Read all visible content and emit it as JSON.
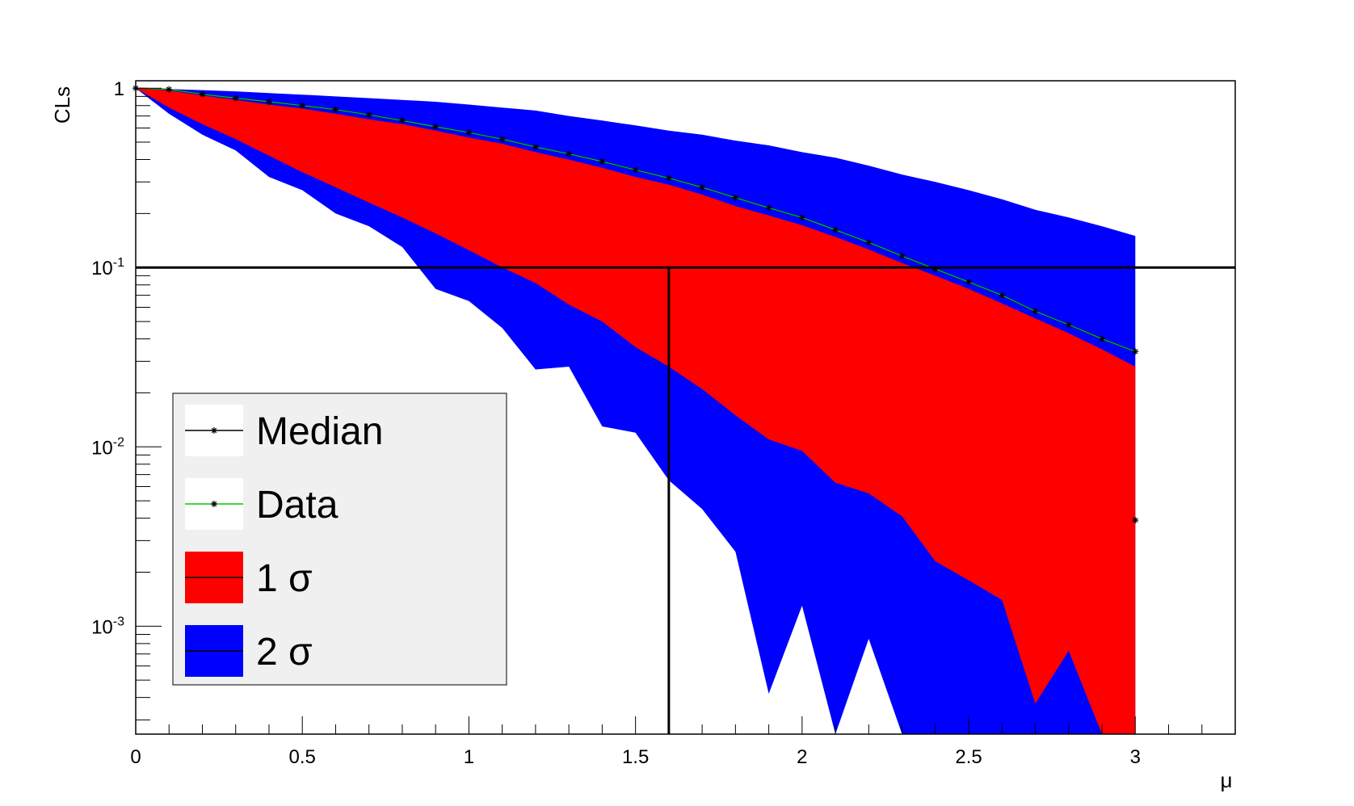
{
  "chart_data": {
    "type": "line",
    "xlabel": "μ",
    "ylabel": "CLs",
    "xlim": [
      0,
      3.3
    ],
    "ylim": [
      0.00025,
      1.1
    ],
    "yscale": "log",
    "grid": false,
    "legend_position": "bottom-left",
    "x_ticks": [
      "0",
      "0.5",
      "1",
      "1.5",
      "2",
      "2.5",
      "3"
    ],
    "y_ticks": [
      {
        "base": "1",
        "exp": ""
      },
      {
        "base": "10",
        "exp": "-1"
      },
      {
        "base": "10",
        "exp": "-2"
      },
      {
        "base": "10",
        "exp": "-3"
      }
    ],
    "threshold_y": 0.1,
    "limit_x": 1.6,
    "x": [
      0,
      0.1,
      0.2,
      0.3,
      0.4,
      0.5,
      0.6,
      0.7,
      0.8,
      0.9,
      1.0,
      1.1,
      1.2,
      1.3,
      1.4,
      1.5,
      1.6,
      1.7,
      1.8,
      1.9,
      2.0,
      2.1,
      2.2,
      2.3,
      2.4,
      2.5,
      2.6,
      2.7,
      2.8,
      2.9,
      3.0
    ],
    "series": [
      {
        "name": "Median",
        "color": "#000000",
        "values": [
          1.0,
          0.985,
          0.925,
          0.88,
          0.84,
          0.8,
          0.76,
          0.71,
          0.66,
          0.61,
          0.565,
          0.52,
          0.47,
          0.43,
          0.39,
          0.35,
          0.315,
          0.28,
          0.245,
          0.215,
          0.19,
          0.162,
          0.138,
          0.116,
          0.098,
          0.083,
          0.07,
          0.057,
          0.048,
          0.04,
          0.034
        ]
      },
      {
        "name": "Data",
        "color": "#00cc00",
        "values": [
          1.0,
          0.985,
          0.925,
          0.88,
          0.84,
          0.8,
          0.76,
          0.71,
          0.66,
          0.61,
          0.565,
          0.52,
          0.47,
          0.43,
          0.39,
          0.35,
          0.315,
          0.28,
          0.245,
          0.215,
          0.19,
          0.162,
          0.138,
          0.116,
          0.098,
          0.083,
          0.07,
          0.057,
          0.048,
          0.04,
          0.034
        ]
      }
    ],
    "band_1sigma": {
      "name": "1 σ",
      "color": "#ff0000",
      "upper": [
        1.0,
        0.97,
        0.91,
        0.86,
        0.81,
        0.77,
        0.72,
        0.67,
        0.63,
        0.58,
        0.53,
        0.49,
        0.44,
        0.4,
        0.36,
        0.32,
        0.29,
        0.255,
        0.22,
        0.195,
        0.172,
        0.148,
        0.126,
        0.106,
        0.09,
        0.076,
        0.063,
        0.052,
        0.043,
        0.035,
        0.028
      ],
      "lower": [
        1.0,
        0.78,
        0.63,
        0.52,
        0.42,
        0.34,
        0.28,
        0.23,
        0.19,
        0.155,
        0.125,
        0.1,
        0.082,
        0.062,
        0.05,
        0.036,
        0.028,
        0.021,
        0.015,
        0.011,
        0.0095,
        0.0063,
        0.0055,
        0.0041,
        0.0023,
        0.0018,
        0.0014,
        0.00037,
        0.00073,
        0.00025,
        0.00025
      ]
    },
    "band_2sigma": {
      "name": "2 σ",
      "color": "#0000ff",
      "upper": [
        1.0,
        0.99,
        0.975,
        0.96,
        0.94,
        0.92,
        0.9,
        0.88,
        0.86,
        0.84,
        0.81,
        0.78,
        0.75,
        0.7,
        0.66,
        0.62,
        0.58,
        0.55,
        0.51,
        0.48,
        0.44,
        0.41,
        0.37,
        0.33,
        0.3,
        0.27,
        0.24,
        0.21,
        0.19,
        0.17,
        0.15
      ],
      "lower": [
        1.0,
        0.72,
        0.55,
        0.45,
        0.32,
        0.27,
        0.2,
        0.17,
        0.13,
        0.076,
        0.065,
        0.046,
        0.027,
        0.028,
        0.013,
        0.012,
        0.0065,
        0.0045,
        0.0026,
        0.00042,
        0.0013,
        0.00025,
        0.00085,
        0.00025,
        0.00025,
        0.00025,
        0.00025,
        0.00025,
        0.00025,
        0.00025,
        0.00025
      ]
    },
    "extra_points": [
      {
        "x": 3.0,
        "y": 0.0039
      }
    ]
  },
  "legend": {
    "items": [
      {
        "label": "Median",
        "kind": "line",
        "line_color": "#000000"
      },
      {
        "label": "Data",
        "kind": "line",
        "line_color": "#00cc00"
      },
      {
        "label": "1 σ",
        "kind": "box",
        "fill": "#ff0000"
      },
      {
        "label": "2 σ",
        "kind": "box",
        "fill": "#0000ff"
      }
    ]
  }
}
